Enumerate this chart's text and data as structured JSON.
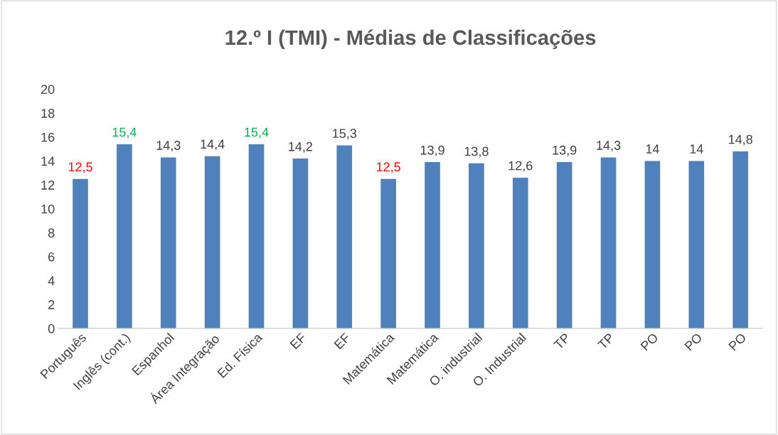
{
  "chart_data": {
    "type": "bar",
    "title": "12.º I (TMI) - Médias de Classificações",
    "categories": [
      "Português",
      "Inglês (cont.)",
      "Espanhol",
      "Área Integração",
      "Ed. Física",
      "EF",
      "EF",
      "Matemática",
      "Matemática",
      "O. industrial",
      "O. Industrial",
      "TP",
      "TP",
      "PO",
      "PO",
      "PO"
    ],
    "values": [
      12.5,
      15.4,
      14.3,
      14.4,
      15.4,
      14.2,
      15.3,
      12.5,
      13.9,
      13.8,
      12.6,
      13.9,
      14.3,
      14,
      14,
      14.8
    ],
    "value_labels": [
      "12,5",
      "15,4",
      "14,3",
      "14,4",
      "15,4",
      "14,2",
      "15,3",
      "12,5",
      "13,9",
      "13,8",
      "12,6",
      "13,9",
      "14,3",
      "14",
      "14",
      "14,8"
    ],
    "color": "#4f81bd",
    "ylim": [
      0,
      20
    ],
    "yticks": [
      0,
      2,
      4,
      6,
      8,
      10,
      12,
      14,
      16,
      18,
      20
    ],
    "grid": false,
    "legend": false
  }
}
